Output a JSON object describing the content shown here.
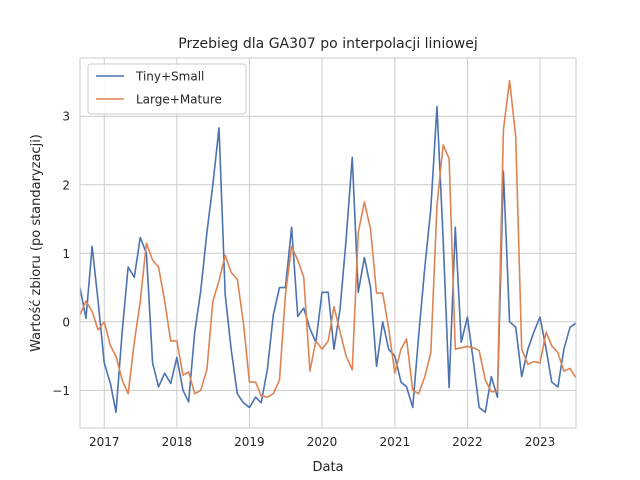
{
  "chart_data": {
    "type": "line",
    "title": "Przebieg dla GA307 po interpolacji liniowej",
    "xlabel": "Data",
    "ylabel": "Wartość zbioru (po standaryzacji)",
    "xlim": [
      "2016-09-01",
      "2023-07-01"
    ],
    "ylim": [
      -1.55,
      3.85
    ],
    "x_ticks": [
      "2017-01-01",
      "2018-01-01",
      "2019-01-01",
      "2020-01-01",
      "2021-01-01",
      "2022-01-01",
      "2023-01-01"
    ],
    "x_tick_labels": [
      "2017",
      "2018",
      "2019",
      "2020",
      "2021",
      "2022",
      "2023"
    ],
    "y_ticks": [
      -1,
      0,
      1,
      2,
      3
    ],
    "y_tick_labels": [
      "−1",
      "0",
      "1",
      "2",
      "3"
    ],
    "grid": true,
    "legend_position": "top-left",
    "series": [
      {
        "name": "Tiny+Small",
        "color": "#4c72b0",
        "points": [
          [
            "2016-09-01",
            0.5
          ],
          [
            "2016-10-01",
            0.05
          ],
          [
            "2016-11-01",
            1.1
          ],
          [
            "2016-12-01",
            0.3
          ],
          [
            "2017-01-01",
            -0.6
          ],
          [
            "2017-02-01",
            -0.9
          ],
          [
            "2017-03-01",
            -1.32
          ],
          [
            "2017-04-01",
            -0.15
          ],
          [
            "2017-05-01",
            0.8
          ],
          [
            "2017-06-01",
            0.65
          ],
          [
            "2017-07-01",
            1.23
          ],
          [
            "2017-08-01",
            1.0
          ],
          [
            "2017-09-01",
            -0.6
          ],
          [
            "2017-10-01",
            -0.95
          ],
          [
            "2017-11-01",
            -0.75
          ],
          [
            "2017-12-01",
            -0.9
          ],
          [
            "2018-01-01",
            -0.52
          ],
          [
            "2018-02-01",
            -1.0
          ],
          [
            "2018-03-01",
            -1.17
          ],
          [
            "2018-04-01",
            -0.15
          ],
          [
            "2018-05-01",
            0.45
          ],
          [
            "2018-06-01",
            1.3
          ],
          [
            "2018-07-01",
            2.0
          ],
          [
            "2018-08-01",
            2.83
          ],
          [
            "2018-09-01",
            0.4
          ],
          [
            "2018-10-01",
            -0.4
          ],
          [
            "2018-11-01",
            -1.05
          ],
          [
            "2018-12-01",
            -1.18
          ],
          [
            "2019-01-01",
            -1.25
          ],
          [
            "2019-02-01",
            -1.1
          ],
          [
            "2019-03-01",
            -1.18
          ],
          [
            "2019-04-01",
            -0.7
          ],
          [
            "2019-05-01",
            0.1
          ],
          [
            "2019-06-01",
            0.5
          ],
          [
            "2019-07-01",
            0.5
          ],
          [
            "2019-08-01",
            1.38
          ],
          [
            "2019-09-01",
            0.08
          ],
          [
            "2019-10-01",
            0.2
          ],
          [
            "2019-11-01",
            -0.1
          ],
          [
            "2019-12-01",
            -0.3
          ],
          [
            "2020-01-01",
            0.43
          ],
          [
            "2020-02-01",
            0.43
          ],
          [
            "2020-03-01",
            -0.4
          ],
          [
            "2020-04-01",
            0.2
          ],
          [
            "2020-05-01",
            1.2
          ],
          [
            "2020-06-01",
            2.4
          ],
          [
            "2020-07-01",
            0.43
          ],
          [
            "2020-08-01",
            0.94
          ],
          [
            "2020-09-01",
            0.5
          ],
          [
            "2020-10-01",
            -0.65
          ],
          [
            "2020-11-01",
            0.0
          ],
          [
            "2020-12-01",
            -0.4
          ],
          [
            "2021-01-01",
            -0.5
          ],
          [
            "2021-02-01",
            -0.88
          ],
          [
            "2021-03-01",
            -0.95
          ],
          [
            "2021-04-01",
            -1.25
          ],
          [
            "2021-05-01",
            -0.2
          ],
          [
            "2021-06-01",
            0.8
          ],
          [
            "2021-07-01",
            1.65
          ],
          [
            "2021-08-01",
            3.14
          ],
          [
            "2021-09-01",
            1.2
          ],
          [
            "2021-10-01",
            -0.96
          ],
          [
            "2021-11-01",
            1.38
          ],
          [
            "2021-12-01",
            -0.3
          ],
          [
            "2022-01-01",
            0.07
          ],
          [
            "2022-02-01",
            -0.6
          ],
          [
            "2022-03-01",
            -1.25
          ],
          [
            "2022-04-01",
            -1.32
          ],
          [
            "2022-05-01",
            -0.8
          ],
          [
            "2022-06-01",
            -1.1
          ],
          [
            "2022-07-01",
            2.2
          ],
          [
            "2022-08-01",
            0.0
          ],
          [
            "2022-09-01",
            -0.08
          ],
          [
            "2022-10-01",
            -0.8
          ],
          [
            "2022-11-01",
            -0.4
          ],
          [
            "2022-12-01",
            -0.15
          ],
          [
            "2023-01-01",
            0.07
          ],
          [
            "2023-02-01",
            -0.4
          ],
          [
            "2023-03-01",
            -0.88
          ],
          [
            "2023-04-01",
            -0.95
          ],
          [
            "2023-05-01",
            -0.4
          ],
          [
            "2023-06-01",
            -0.08
          ],
          [
            "2023-07-01",
            -0.02
          ]
        ]
      },
      {
        "name": "Large+Mature",
        "color": "#dd8452",
        "points": [
          [
            "2016-09-01",
            0.1
          ],
          [
            "2016-10-01",
            0.3
          ],
          [
            "2016-11-01",
            0.15
          ],
          [
            "2016-12-01",
            -0.12
          ],
          [
            "2017-01-01",
            0.0
          ],
          [
            "2017-02-01",
            -0.35
          ],
          [
            "2017-03-01",
            -0.5
          ],
          [
            "2017-04-01",
            -0.85
          ],
          [
            "2017-05-01",
            -1.05
          ],
          [
            "2017-06-01",
            -0.3
          ],
          [
            "2017-07-01",
            0.3
          ],
          [
            "2017-08-01",
            1.15
          ],
          [
            "2017-09-01",
            0.9
          ],
          [
            "2017-10-01",
            0.8
          ],
          [
            "2017-11-01",
            0.3
          ],
          [
            "2017-12-01",
            -0.28
          ],
          [
            "2018-01-01",
            -0.28
          ],
          [
            "2018-02-01",
            -0.78
          ],
          [
            "2018-03-01",
            -0.73
          ],
          [
            "2018-04-01",
            -1.05
          ],
          [
            "2018-05-01",
            -1.0
          ],
          [
            "2018-06-01",
            -0.7
          ],
          [
            "2018-07-01",
            0.3
          ],
          [
            "2018-08-01",
            0.6
          ],
          [
            "2018-09-01",
            0.97
          ],
          [
            "2018-10-01",
            0.72
          ],
          [
            "2018-11-01",
            0.62
          ],
          [
            "2018-12-01",
            0.0
          ],
          [
            "2019-01-01",
            -0.88
          ],
          [
            "2019-02-01",
            -0.88
          ],
          [
            "2019-03-01",
            -1.08
          ],
          [
            "2019-04-01",
            -1.1
          ],
          [
            "2019-05-01",
            -1.05
          ],
          [
            "2019-06-01",
            -0.85
          ],
          [
            "2019-07-01",
            0.4
          ],
          [
            "2019-08-01",
            1.1
          ],
          [
            "2019-09-01",
            0.9
          ],
          [
            "2019-10-01",
            0.65
          ],
          [
            "2019-11-01",
            -0.72
          ],
          [
            "2019-12-01",
            -0.28
          ],
          [
            "2020-01-01",
            -0.4
          ],
          [
            "2020-02-01",
            -0.28
          ],
          [
            "2020-03-01",
            0.22
          ],
          [
            "2020-04-01",
            -0.15
          ],
          [
            "2020-05-01",
            -0.5
          ],
          [
            "2020-06-01",
            -0.7
          ],
          [
            "2020-07-01",
            1.3
          ],
          [
            "2020-08-01",
            1.75
          ],
          [
            "2020-09-01",
            1.35
          ],
          [
            "2020-10-01",
            0.42
          ],
          [
            "2020-11-01",
            0.42
          ],
          [
            "2020-12-01",
            -0.1
          ],
          [
            "2021-01-01",
            -0.75
          ],
          [
            "2021-02-01",
            -0.4
          ],
          [
            "2021-03-01",
            -0.25
          ],
          [
            "2021-04-01",
            -1.0
          ],
          [
            "2021-05-01",
            -1.05
          ],
          [
            "2021-06-01",
            -0.8
          ],
          [
            "2021-07-01",
            -0.45
          ],
          [
            "2021-08-01",
            1.7
          ],
          [
            "2021-09-01",
            2.58
          ],
          [
            "2021-10-01",
            2.38
          ],
          [
            "2021-11-01",
            -0.4
          ],
          [
            "2021-12-01",
            -0.38
          ],
          [
            "2022-01-01",
            -0.36
          ],
          [
            "2022-02-01",
            -0.38
          ],
          [
            "2022-03-01",
            -0.42
          ],
          [
            "2022-04-01",
            -0.85
          ],
          [
            "2022-05-01",
            -1.02
          ],
          [
            "2022-06-01",
            -1.02
          ],
          [
            "2022-07-01",
            2.8
          ],
          [
            "2022-08-01",
            3.52
          ],
          [
            "2022-09-01",
            2.7
          ],
          [
            "2022-10-01",
            -0.4
          ],
          [
            "2022-11-01",
            -0.62
          ],
          [
            "2022-12-01",
            -0.58
          ],
          [
            "2023-01-01",
            -0.6
          ],
          [
            "2023-02-01",
            -0.15
          ],
          [
            "2023-03-01",
            -0.35
          ],
          [
            "2023-04-01",
            -0.45
          ],
          [
            "2023-05-01",
            -0.72
          ],
          [
            "2023-06-01",
            -0.68
          ],
          [
            "2023-07-01",
            -0.82
          ]
        ]
      }
    ]
  }
}
